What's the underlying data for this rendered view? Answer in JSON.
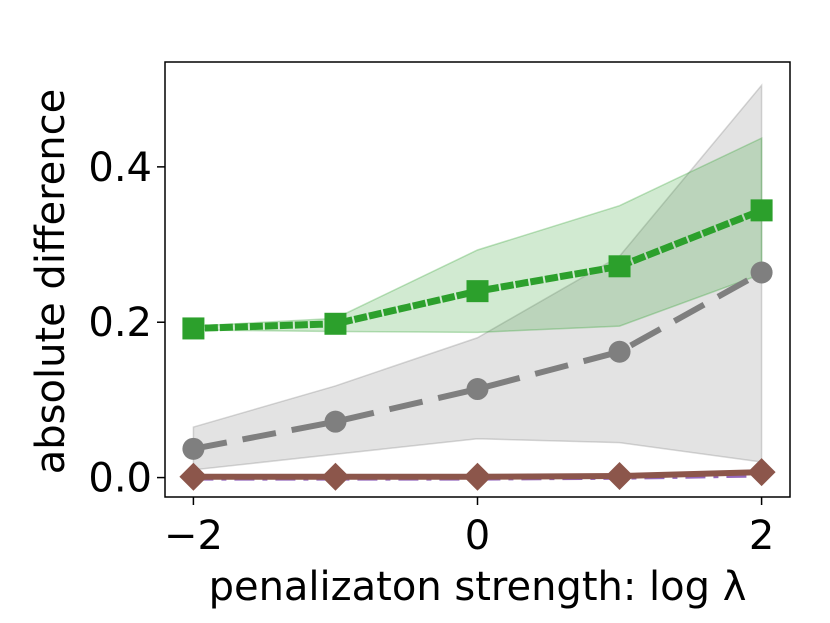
{
  "chart_data": {
    "type": "line",
    "title": "",
    "xlabel": "penalizaton strength:  log λ",
    "ylabel": "absolute difference",
    "x": [
      -2,
      -1,
      0,
      1,
      2
    ],
    "xlim": [
      -2.2,
      2.2
    ],
    "ylim": [
      -0.025,
      0.535
    ],
    "xticks": [
      -2,
      0,
      2
    ],
    "xtick_labels": [
      "−2",
      "0",
      "2"
    ],
    "yticks": [
      0.0,
      0.2,
      0.4
    ],
    "ytick_labels": [
      "0.0",
      "0.2",
      "0.4"
    ],
    "grid": false,
    "series": [
      {
        "name": "grey-circles",
        "color": "#7f7f7f",
        "linestyle": "dashed",
        "marker": "circle",
        "values": [
          0.037,
          0.072,
          0.114,
          0.162,
          0.264
        ],
        "band_lower": [
          0.01,
          0.03,
          0.05,
          0.045,
          0.02
        ],
        "band_upper": [
          0.065,
          0.118,
          0.18,
          0.285,
          0.505
        ]
      },
      {
        "name": "green-squares",
        "color": "#2ca02c",
        "linestyle": "dotted",
        "marker": "square",
        "values": [
          0.192,
          0.198,
          0.24,
          0.272,
          0.344
        ],
        "band_lower": [
          0.19,
          0.188,
          0.187,
          0.195,
          0.262
        ],
        "band_upper": [
          0.195,
          0.205,
          0.293,
          0.35,
          0.437
        ]
      },
      {
        "name": "purple-line",
        "color": "#9467bd",
        "linestyle": "dashdot",
        "marker": "none",
        "values": [
          0.0,
          0.0,
          0.0,
          0.001,
          0.004
        ]
      },
      {
        "name": "brown-diamonds",
        "color": "#8c564b",
        "linestyle": "solid",
        "marker": "diamond",
        "values": [
          0.001,
          0.001,
          0.001,
          0.002,
          0.007
        ]
      }
    ]
  }
}
